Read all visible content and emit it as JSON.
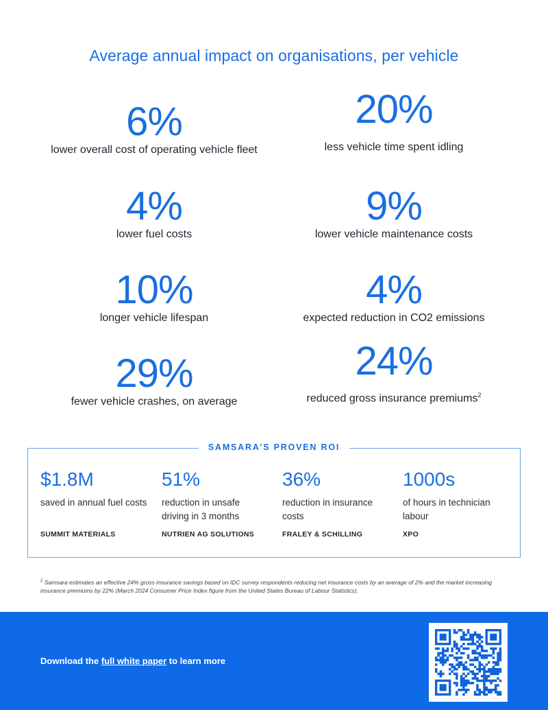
{
  "title": "Average annual impact on organisations, per vehicle",
  "stats": [
    {
      "value": "6%",
      "desc": "lower overall cost of operating vehicle fleet"
    },
    {
      "value": "20%",
      "desc": "less vehicle time spent idling"
    },
    {
      "value": "4%",
      "desc": "lower fuel costs"
    },
    {
      "value": "9%",
      "desc": "lower vehicle maintenance costs"
    },
    {
      "value": "10%",
      "desc": "longer vehicle lifespan"
    },
    {
      "value": "4%",
      "desc": "expected reduction in CO2 emissions"
    },
    {
      "value": "29%",
      "desc": "fewer vehicle crashes, on average"
    },
    {
      "value": "24%",
      "desc": "reduced gross insurance premiums",
      "sup": "2"
    }
  ],
  "roi": {
    "heading": "SAMSARA’S PROVEN ROI",
    "items": [
      {
        "value": "$1.8M",
        "desc": "saved in annual fuel costs",
        "company": "SUMMIT MATERIALS"
      },
      {
        "value": "51%",
        "desc": "reduction in unsafe driving in 3 months",
        "company": "NUTRIEN AG SOLUTIONS"
      },
      {
        "value": "36%",
        "desc": "reduction in insurance costs",
        "company": "FRALEY & SCHILLING"
      },
      {
        "value": "1000s",
        "desc": "of hours in technician labour",
        "company": "XPO"
      }
    ]
  },
  "footnote": {
    "marker": "2",
    "text": "Samsara estimates an effective 24% gross insurance savings based on IDC survey respondents reducing net insurance costs by an average of 2% and the market increasing insurance premiums by 22% (March 2024 Consumer Price Index figure from the United States Bureau of Labour Statistics)."
  },
  "cta": {
    "prefix": "Download the ",
    "link": "full white paper",
    "suffix": " to learn more"
  },
  "colors": {
    "accent": "#1a6fe0",
    "footer_bg": "#0e6ae6",
    "text": "#1c2430"
  },
  "icons": {
    "qr": "qr-code-icon"
  }
}
